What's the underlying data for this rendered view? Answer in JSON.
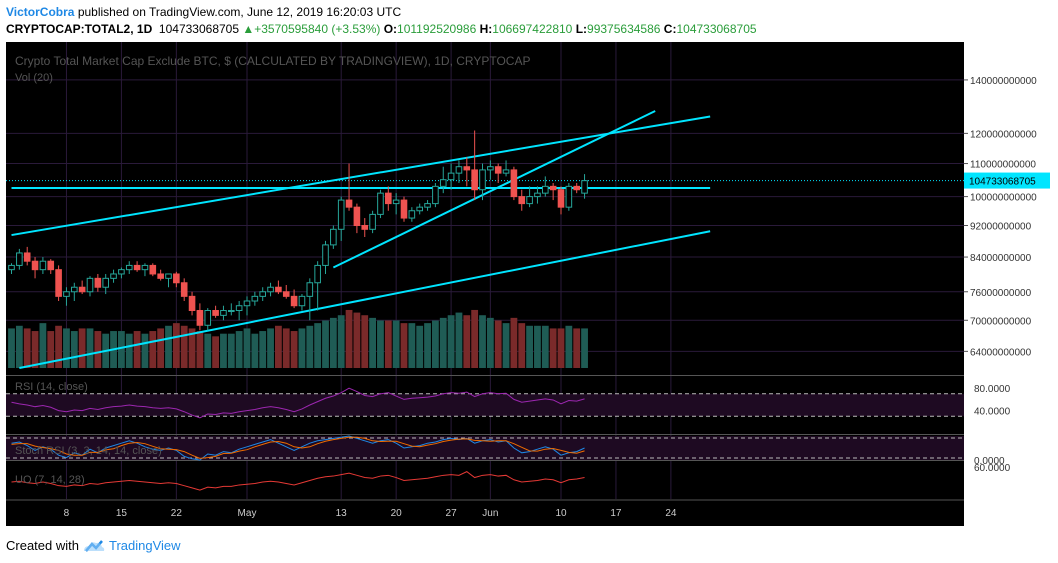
{
  "header": {
    "author": "VictorCobra",
    "published_text": "published on TradingView.com, June 12, 2019 16:20:03 UTC",
    "symbol": "CRYPTOCAP:TOTAL2, 1D",
    "last": "104733068705",
    "change": "+3570595840 (+3.53%)",
    "o_label": "O:",
    "o": "101192520986",
    "h_label": "H:",
    "h": "106697422810",
    "l_label": "L:",
    "l": "99375634586",
    "c_label": "C:",
    "c": "104733068705"
  },
  "footer": {
    "created_with": "Created with",
    "brand": "TradingView"
  },
  "colors": {
    "bg": "#000000",
    "up": "#26a69a",
    "down": "#ef5350",
    "line": "#00e5ff",
    "vol_up": "#1f5c55",
    "vol_down": "#7a2a2a",
    "rsi": "#9c27b0",
    "stoch_k": "#1e88e5",
    "stoch_d": "#ef6c00",
    "uo": "#e53935"
  },
  "chart_data": {
    "type": "candlestick",
    "title": "Crypto Total Market Cap Exclude BTC, $ (CALCULATED BY TRADINGVIEW), 1D, CRYPTOCAP",
    "volume_label": "Vol (20)",
    "y_ticks": [
      "140000000000",
      "120000000000",
      "110000000000",
      "100000000000",
      "92000000000",
      "84000000000",
      "76000000000",
      "70000000000",
      "64000000000"
    ],
    "y_tick_values": [
      140,
      120,
      110,
      100,
      92,
      84,
      76,
      70,
      64
    ],
    "ylim": [
      61,
      150
    ],
    "log_scale": true,
    "last_price_label": "104733068705",
    "last_price": 104.733,
    "x_ticks": [
      "8",
      "15",
      "22",
      "May",
      "13",
      "20",
      "27",
      "Jun",
      "10",
      "17",
      "24"
    ],
    "x_tick_days": [
      7,
      14,
      21,
      30,
      42,
      49,
      56,
      61,
      70,
      77,
      84
    ],
    "candles": [
      [
        0,
        81,
        82.5,
        80,
        82
      ],
      [
        1,
        82,
        86,
        81,
        85
      ],
      [
        2,
        85,
        86.5,
        82,
        83
      ],
      [
        3,
        83,
        84,
        79,
        81
      ],
      [
        4,
        81,
        84,
        80,
        83
      ],
      [
        5,
        83,
        83.5,
        80,
        81
      ],
      [
        6,
        81,
        82,
        74,
        75
      ],
      [
        7,
        75,
        77,
        73,
        76
      ],
      [
        8,
        76,
        78,
        74,
        77
      ],
      [
        9,
        77,
        78.5,
        75.5,
        76
      ],
      [
        10,
        76,
        79.5,
        75,
        79
      ],
      [
        11,
        79,
        80,
        76,
        77
      ],
      [
        12,
        77,
        80,
        75.5,
        79
      ],
      [
        13,
        79,
        81,
        78,
        80
      ],
      [
        14,
        80,
        81.5,
        79,
        81
      ],
      [
        15,
        81,
        83,
        80,
        82
      ],
      [
        16,
        82,
        83,
        80.5,
        81
      ],
      [
        17,
        81,
        82.5,
        79.5,
        82
      ],
      [
        18,
        82,
        82.5,
        79.5,
        80
      ],
      [
        19,
        80,
        81,
        78.5,
        79
      ],
      [
        20,
        79,
        80,
        77,
        80
      ],
      [
        21,
        80,
        80.5,
        77,
        78
      ],
      [
        22,
        78,
        79,
        74,
        75
      ],
      [
        23,
        75,
        76,
        71,
        72
      ],
      [
        24,
        72,
        73.5,
        68,
        69
      ],
      [
        25,
        69,
        72.5,
        68,
        72
      ],
      [
        26,
        72,
        73,
        70.5,
        71
      ],
      [
        27,
        71,
        73,
        70,
        72
      ],
      [
        28,
        72,
        73.5,
        71,
        72
      ],
      [
        29,
        72,
        74,
        70,
        73
      ],
      [
        30,
        73,
        75,
        71,
        74
      ],
      [
        31,
        74,
        76,
        73,
        75
      ],
      [
        32,
        75,
        77,
        74,
        76
      ],
      [
        33,
        76,
        78,
        75,
        77
      ],
      [
        34,
        77,
        78.5,
        75.5,
        76
      ],
      [
        35,
        76,
        77.5,
        74.5,
        75
      ],
      [
        36,
        75,
        76.5,
        72.5,
        73
      ],
      [
        37,
        73,
        75.5,
        72,
        75
      ],
      [
        38,
        75,
        79,
        70,
        78
      ],
      [
        39,
        78,
        83,
        72,
        82
      ],
      [
        40,
        82,
        88,
        80,
        87
      ],
      [
        41,
        87,
        92,
        86,
        91
      ],
      [
        42,
        91,
        100,
        88,
        99
      ],
      [
        43,
        99,
        110,
        96,
        97
      ],
      [
        44,
        97,
        98,
        90,
        92
      ],
      [
        45,
        92,
        94,
        89,
        91
      ],
      [
        46,
        91,
        96,
        90,
        95
      ],
      [
        47,
        95,
        102,
        94,
        101
      ],
      [
        48,
        101,
        103,
        96,
        98
      ],
      [
        49,
        98,
        101,
        95,
        99
      ],
      [
        50,
        99,
        100,
        93,
        94
      ],
      [
        51,
        94,
        97,
        93,
        96
      ],
      [
        52,
        96,
        98,
        95,
        97
      ],
      [
        53,
        97,
        99,
        96,
        98
      ],
      [
        54,
        98,
        104,
        97,
        103
      ],
      [
        55,
        103,
        109,
        101,
        105
      ],
      [
        56,
        105,
        110,
        102,
        107
      ],
      [
        57,
        107,
        111,
        104,
        109
      ],
      [
        58,
        109,
        112,
        103,
        108
      ],
      [
        59,
        108,
        121,
        99,
        102
      ],
      [
        60,
        102,
        110,
        99,
        108
      ],
      [
        61,
        108,
        111,
        105,
        109
      ],
      [
        62,
        109,
        110,
        104,
        107
      ],
      [
        63,
        107,
        111,
        106,
        108
      ],
      [
        64,
        108,
        109,
        99,
        100
      ],
      [
        65,
        100,
        102,
        96,
        98
      ],
      [
        66,
        98,
        103,
        97,
        100
      ],
      [
        67,
        100,
        103,
        98,
        101
      ],
      [
        68,
        101,
        106,
        100,
        103
      ],
      [
        69,
        103,
        104,
        99,
        102
      ],
      [
        70,
        102,
        103,
        95,
        97
      ],
      [
        71,
        97,
        104,
        96,
        103
      ],
      [
        72,
        103,
        104,
        101,
        102
      ],
      [
        73,
        101,
        106.7,
        99.4,
        104.7
      ]
    ],
    "volume_values": [
      7.5,
      8,
      7.5,
      7,
      8.5,
      7,
      8,
      7.5,
      7,
      7.5,
      7.5,
      7,
      6.5,
      7,
      7,
      6.5,
      7,
      6.5,
      7,
      7.5,
      8,
      8.5,
      8,
      7.5,
      7,
      6.5,
      6,
      6.5,
      6.5,
      7,
      7.5,
      6.5,
      7,
      7.5,
      8,
      7.5,
      7,
      7.5,
      8,
      8.5,
      9,
      9.5,
      10,
      11,
      10.5,
      10,
      9.5,
      9,
      9,
      9,
      8.5,
      8.5,
      8,
      8.5,
      9,
      9.5,
      10,
      10.5,
      10,
      11,
      10,
      9.5,
      9,
      8.5,
      9.5,
      8.5,
      8,
      8,
      8,
      7.5,
      7.5,
      8,
      7.5,
      7.5
    ],
    "trendlines": [
      {
        "name": "upper channel",
        "from": [
          0,
          89.5
        ],
        "to": [
          89,
          126
        ]
      },
      {
        "name": "lower channel",
        "from": [
          1,
          61
        ],
        "to": [
          89,
          90.5
        ]
      },
      {
        "name": "rising wedge",
        "from": [
          41,
          81.5
        ],
        "to": [
          82,
          128
        ]
      },
      {
        "name": "horizontal support",
        "from": [
          0,
          102.5
        ],
        "to": [
          89,
          102.5
        ]
      }
    ],
    "rsi": {
      "label": "RSI (14, close)",
      "ticks": [
        "80.0000",
        "40.0000"
      ],
      "tick_values": [
        80,
        40
      ],
      "bands": [
        70,
        30
      ],
      "values": [
        55,
        52,
        50,
        47,
        49,
        46,
        40,
        38,
        41,
        40,
        44,
        42,
        45,
        47,
        48,
        50,
        48,
        47,
        45,
        44,
        45,
        43,
        38,
        32,
        27,
        34,
        33,
        36,
        35,
        38,
        40,
        42,
        45,
        47,
        45,
        42,
        38,
        43,
        50,
        56,
        62,
        66,
        72,
        80,
        74,
        67,
        65,
        70,
        72,
        66,
        60,
        62,
        63,
        64,
        66,
        70,
        72,
        71,
        73,
        65,
        70,
        72,
        70,
        71,
        60,
        55,
        57,
        59,
        61,
        59,
        52,
        58,
        57,
        61
      ]
    },
    "stoch_rsi": {
      "label": "Stoch RSI (3, 3, 14, 14, close)",
      "ticks": [
        "0.0000"
      ],
      "tick_values": [
        0
      ],
      "k": [
        70,
        75,
        60,
        40,
        55,
        45,
        20,
        10,
        30,
        20,
        45,
        30,
        50,
        60,
        70,
        80,
        70,
        55,
        45,
        40,
        50,
        40,
        15,
        5,
        0,
        25,
        20,
        35,
        30,
        45,
        55,
        65,
        75,
        85,
        70,
        55,
        40,
        55,
        70,
        80,
        85,
        90,
        95,
        100,
        90,
        80,
        70,
        80,
        85,
        70,
        50,
        55,
        60,
        70,
        75,
        85,
        90,
        85,
        90,
        70,
        80,
        85,
        75,
        80,
        50,
        30,
        35,
        45,
        55,
        45,
        20,
        30,
        35,
        50
      ],
      "d": [
        65,
        68,
        68,
        58,
        52,
        47,
        40,
        25,
        20,
        20,
        32,
        32,
        42,
        47,
        60,
        70,
        73,
        68,
        57,
        47,
        45,
        43,
        35,
        20,
        7,
        10,
        15,
        27,
        28,
        37,
        43,
        55,
        65,
        75,
        77,
        70,
        55,
        50,
        55,
        68,
        78,
        85,
        90,
        95,
        95,
        90,
        80,
        77,
        78,
        78,
        68,
        58,
        55,
        62,
        68,
        77,
        83,
        87,
        88,
        82,
        80,
        78,
        80,
        80,
        68,
        53,
        38,
        37,
        45,
        48,
        40,
        32,
        28,
        38
      ]
    },
    "uo": {
      "label": "UO (7, 14, 28)",
      "ticks": [
        "60.0000"
      ],
      "tick_values": [
        60
      ],
      "values": [
        48,
        49,
        47,
        46,
        48,
        46,
        43,
        42,
        44,
        43,
        46,
        45,
        47,
        48,
        49,
        50,
        49,
        48,
        47,
        46,
        47,
        46,
        43,
        40,
        37,
        41,
        40,
        42,
        42,
        44,
        45,
        46,
        48,
        49,
        48,
        46,
        44,
        47,
        50,
        53,
        55,
        56,
        58,
        60,
        57,
        54,
        53,
        56,
        57,
        54,
        50,
        51,
        52,
        53,
        55,
        57,
        58,
        57,
        62,
        54,
        57,
        58,
        56,
        57,
        51,
        48,
        49,
        50,
        52,
        51,
        47,
        51,
        52,
        54
      ]
    }
  }
}
